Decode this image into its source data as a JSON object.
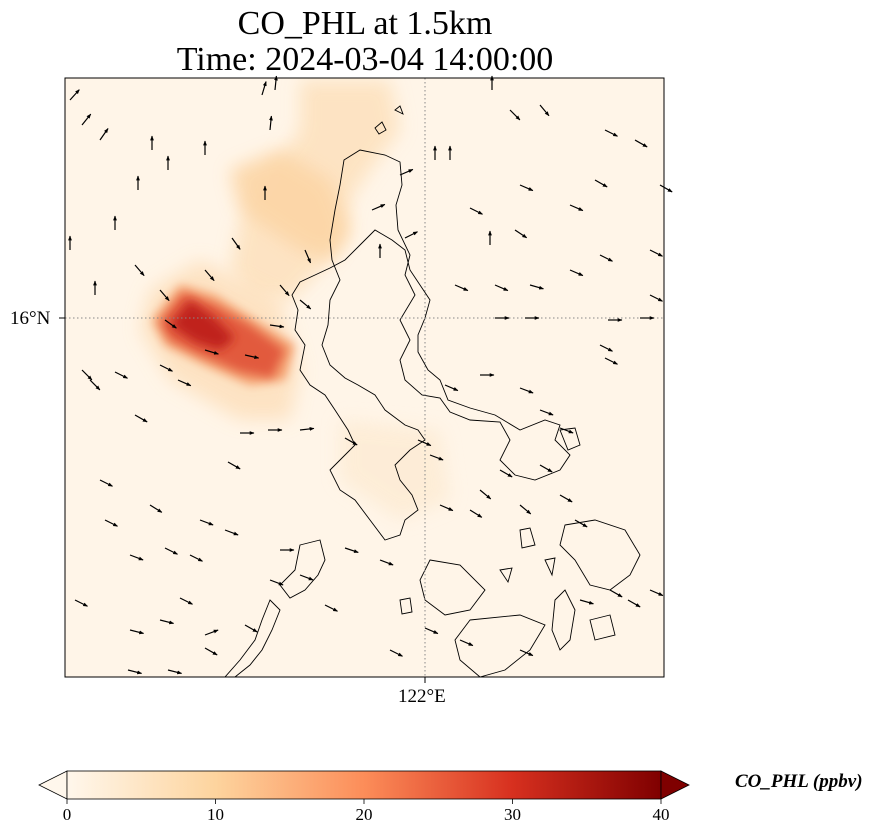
{
  "title_line1": "CO_PHL at 1.5km",
  "title_line2": "Time: 2024-03-04 14:00:00",
  "map": {
    "variable": "CO_PHL",
    "height": "1.5km",
    "time": "2024-03-04 14:00:00",
    "lat_tick_label": "16°N",
    "lon_tick_label": "122°E",
    "gridlines": "dotted",
    "coastline_color": "#000000",
    "wind_vectors": "black arrows"
  },
  "colorbar": {
    "label": "CO_PHL (ppbv)",
    "colormap": "OrRd",
    "min": 0,
    "max": 40,
    "ticks": [
      "0",
      "10",
      "20",
      "30",
      "40"
    ],
    "extend": "both",
    "colors": [
      "#fff7ec",
      "#fdd49e",
      "#fc8d59",
      "#d7301f",
      "#7f0000"
    ]
  }
}
